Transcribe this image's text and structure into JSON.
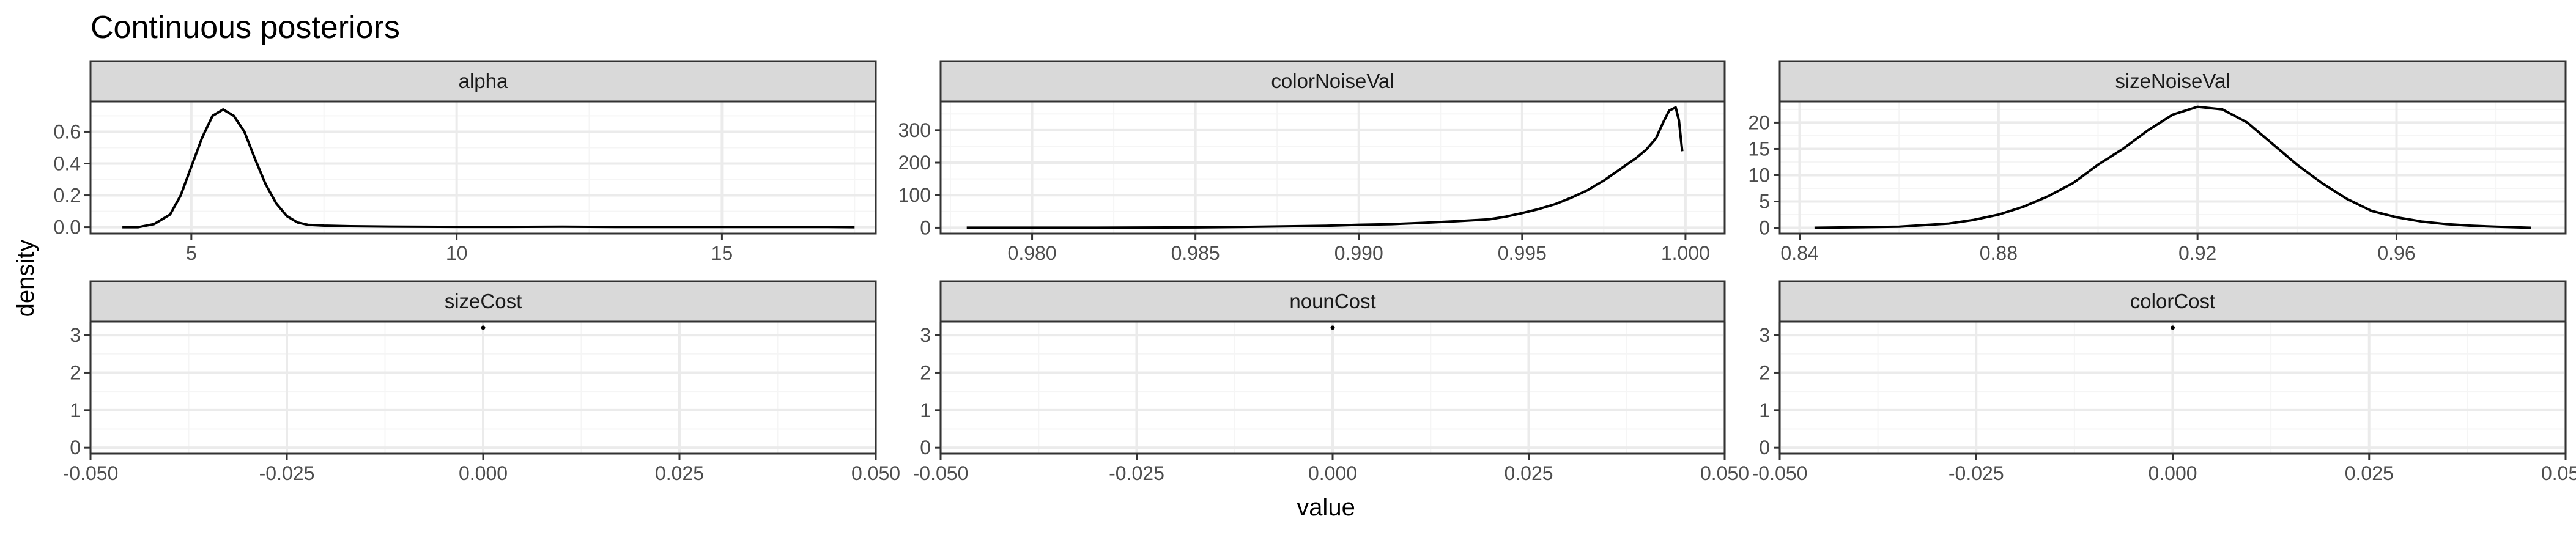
{
  "chart_data": {
    "type": "line",
    "title": "Continuous posteriors",
    "xlabel": "value",
    "ylabel": "density",
    "grid": true,
    "colors": {
      "line": "#000000",
      "strip_fill": "#d9d9d9",
      "border": "#333333",
      "grid_major": "#ebebeb",
      "grid_minor": "#f5f5f5"
    },
    "facets": [
      {
        "name": "alpha",
        "xlim": [
          3.1,
          17.9
        ],
        "ylim": [
          -0.04,
          0.79
        ],
        "xticks": [
          5,
          10,
          15
        ],
        "xtick_labels": [
          "5",
          "10",
          "15"
        ],
        "yticks": [
          0,
          0.2,
          0.4,
          0.6
        ],
        "ytick_labels": [
          "0.0",
          "0.2",
          "0.4",
          "0.6"
        ],
        "x": [
          3.7,
          4.0,
          4.3,
          4.6,
          4.8,
          5.0,
          5.2,
          5.4,
          5.6,
          5.8,
          6.0,
          6.2,
          6.4,
          6.6,
          6.8,
          7.0,
          7.2,
          7.5,
          8.0,
          9.0,
          10.0,
          11.0,
          12.0,
          13.0,
          14.0,
          15.0,
          16.0,
          17.0,
          17.5
        ],
        "y": [
          0.0,
          0.0,
          0.02,
          0.08,
          0.2,
          0.38,
          0.56,
          0.7,
          0.74,
          0.7,
          0.6,
          0.43,
          0.27,
          0.15,
          0.07,
          0.03,
          0.015,
          0.01,
          0.006,
          0.003,
          0.002,
          0.002,
          0.003,
          0.001,
          0.001,
          0.001,
          0.001,
          0.001,
          0.0
        ]
      },
      {
        "name": "colorNoiseVal",
        "xlim": [
          0.9772,
          1.0012
        ],
        "ylim": [
          -18,
          388
        ],
        "xticks": [
          0.98,
          0.985,
          0.99,
          0.995,
          1.0
        ],
        "xtick_labels": [
          "0.980",
          "0.985",
          "0.990",
          "0.995",
          "1.000"
        ],
        "yticks": [
          0,
          100,
          200,
          300
        ],
        "ytick_labels": [
          "0",
          "100",
          "200",
          "300"
        ],
        "x": [
          0.978,
          0.982,
          0.985,
          0.987,
          0.989,
          0.99,
          0.991,
          0.992,
          0.993,
          0.994,
          0.9945,
          0.995,
          0.9955,
          0.996,
          0.9965,
          0.997,
          0.9975,
          0.998,
          0.9985,
          0.9988,
          0.9991,
          0.9993,
          0.9995,
          0.9997,
          0.9998,
          0.9999
        ],
        "y": [
          0,
          0,
          1,
          3,
          6,
          9,
          11,
          15,
          20,
          26,
          34,
          45,
          57,
          72,
          92,
          115,
          145,
          180,
          215,
          240,
          275,
          320,
          360,
          370,
          330,
          235
        ]
      },
      {
        "name": "sizeNoiseVal",
        "xlim": [
          0.836,
          0.994
        ],
        "ylim": [
          -1.1,
          24.0
        ],
        "xticks": [
          0.84,
          0.88,
          0.92,
          0.96
        ],
        "xtick_labels": [
          "0.84",
          "0.88",
          "0.92",
          "0.96"
        ],
        "yticks": [
          0,
          5,
          10,
          15,
          20
        ],
        "ytick_labels": [
          "0",
          "5",
          "10",
          "15",
          "20"
        ],
        "x": [
          0.843,
          0.86,
          0.87,
          0.875,
          0.88,
          0.885,
          0.89,
          0.895,
          0.9,
          0.905,
          0.91,
          0.915,
          0.92,
          0.925,
          0.93,
          0.935,
          0.94,
          0.945,
          0.95,
          0.955,
          0.96,
          0.965,
          0.97,
          0.975,
          0.98,
          0.987
        ],
        "y": [
          0,
          0.2,
          0.8,
          1.5,
          2.5,
          4.0,
          6.0,
          8.5,
          12.0,
          15.0,
          18.5,
          21.5,
          23.0,
          22.5,
          20.0,
          16.0,
          12.0,
          8.5,
          5.5,
          3.2,
          2.0,
          1.2,
          0.7,
          0.4,
          0.2,
          0.0
        ]
      },
      {
        "name": "sizeCost",
        "xlim": [
          -0.05,
          0.05
        ],
        "ylim": [
          -0.16,
          3.36
        ],
        "xticks": [
          -0.05,
          -0.025,
          0.0,
          0.025,
          0.05
        ],
        "xtick_labels": [
          "-0.050",
          "-0.025",
          "0.000",
          "0.025",
          "0.050"
        ],
        "yticks": [
          0,
          1,
          2,
          3
        ],
        "ytick_labels": [
          "0",
          "1",
          "2",
          "3"
        ],
        "x": [
          0.0
        ],
        "y": [
          3.2
        ]
      },
      {
        "name": "nounCost",
        "xlim": [
          -0.05,
          0.05
        ],
        "ylim": [
          -0.16,
          3.36
        ],
        "xticks": [
          -0.05,
          -0.025,
          0.0,
          0.025,
          0.05
        ],
        "xtick_labels": [
          "-0.050",
          "-0.025",
          "0.000",
          "0.025",
          "0.050"
        ],
        "yticks": [
          0,
          1,
          2,
          3
        ],
        "ytick_labels": [
          "0",
          "1",
          "2",
          "3"
        ],
        "x": [
          0.0
        ],
        "y": [
          3.2
        ]
      },
      {
        "name": "colorCost",
        "xlim": [
          -0.05,
          0.05
        ],
        "ylim": [
          -0.16,
          3.36
        ],
        "xticks": [
          -0.05,
          -0.025,
          0.0,
          0.025,
          0.05
        ],
        "xtick_labels": [
          "-0.050",
          "-0.025",
          "0.000",
          "0.025",
          "0.050"
        ],
        "yticks": [
          0,
          1,
          2,
          3
        ],
        "ytick_labels": [
          "0",
          "1",
          "2",
          "3"
        ],
        "x": [
          0.0
        ],
        "y": [
          3.2
        ]
      }
    ]
  }
}
